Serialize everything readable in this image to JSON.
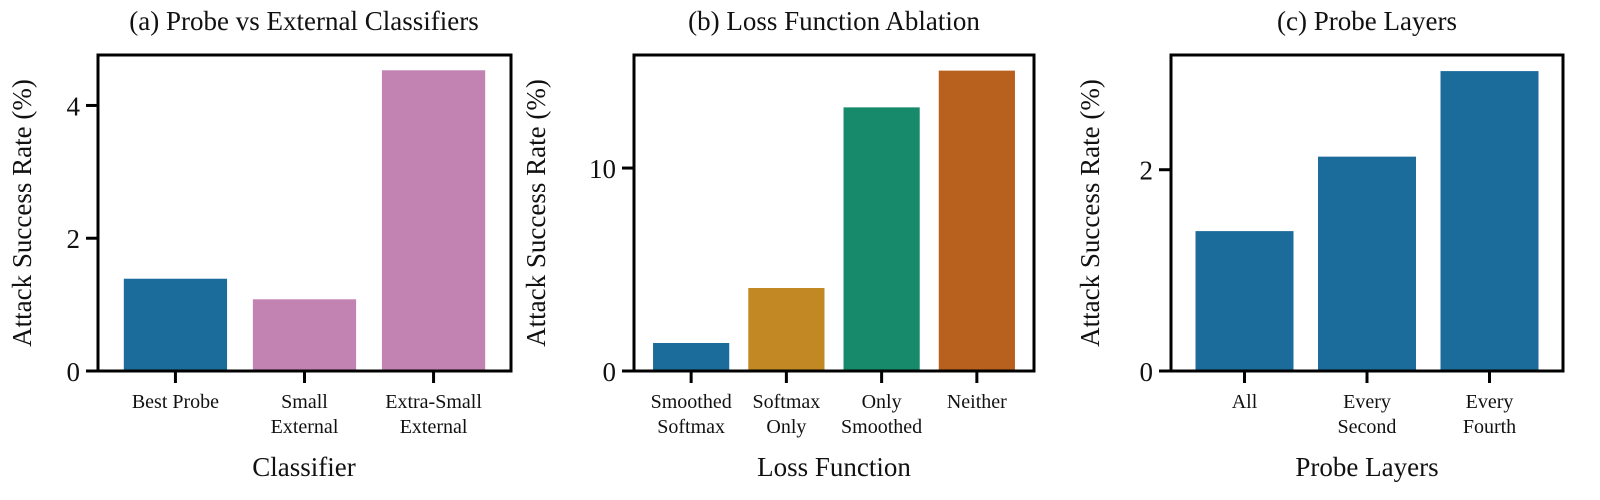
{
  "chart_data": [
    {
      "type": "bar",
      "title": "(a) Probe vs External Classifiers",
      "xlabel": "Classifier",
      "ylabel": "Attack Success Rate (%)",
      "categories": [
        "Best Probe",
        "Small\nExternal",
        "Extra-Small\nExternal"
      ],
      "values": [
        1.39,
        1.08,
        4.53
      ],
      "colors": [
        "#1b6b9b",
        "#c283b3",
        "#c283b3"
      ],
      "yticks": [
        0,
        2,
        4
      ],
      "ylim": [
        0,
        4.76
      ],
      "grid": false,
      "legend": "none"
    },
    {
      "type": "bar",
      "title": "(b) Loss Function Ablation",
      "xlabel": "Loss Function",
      "ylabel": "Attack Success Rate (%)",
      "categories": [
        "Smoothed\nSoftmax",
        "Softmax\nOnly",
        "Only\nSmoothed",
        "Neither"
      ],
      "values": [
        1.38,
        4.09,
        12.99,
        14.8
      ],
      "colors": [
        "#1b6b9b",
        "#c28824",
        "#178a6b",
        "#b8601e"
      ],
      "yticks": [
        0,
        10
      ],
      "ylim": [
        0,
        15.57
      ],
      "grid": false,
      "legend": "none"
    },
    {
      "type": "bar",
      "title": "(c) Probe Layers",
      "xlabel": "Probe Layers",
      "ylabel": "Attack Success Rate (%)",
      "categories": [
        "All",
        "Every\nSecond",
        "Every\nFourth"
      ],
      "values": [
        1.39,
        2.13,
        2.98
      ],
      "colors": [
        "#1b6b9b",
        "#1b6b9b",
        "#1b6b9b"
      ],
      "yticks": [
        0,
        2
      ],
      "ylim": [
        0,
        3.14
      ],
      "grid": false,
      "legend": "none"
    }
  ]
}
